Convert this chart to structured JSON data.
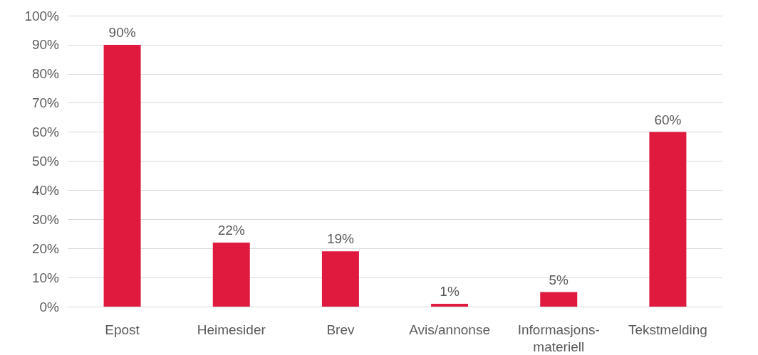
{
  "chart_data": {
    "type": "bar",
    "categories": [
      "Epost",
      "Heimesider",
      "Brev",
      "Avis/annonse",
      "Informasjons-\nmateriell",
      "Tekstmelding"
    ],
    "values": [
      90,
      22,
      19,
      1,
      5,
      60
    ],
    "value_labels": [
      "90%",
      "22%",
      "19%",
      "1%",
      "5%",
      "60%"
    ],
    "color": "#e0193f",
    "ylim": [
      0,
      100
    ],
    "yticks": [
      {
        "value": 0,
        "label": "0%"
      },
      {
        "value": 10,
        "label": "10%"
      },
      {
        "value": 20,
        "label": "20%"
      },
      {
        "value": 30,
        "label": "30%"
      },
      {
        "value": 40,
        "label": "40%"
      },
      {
        "value": 50,
        "label": "50%"
      },
      {
        "value": 60,
        "label": "60%"
      },
      {
        "value": 70,
        "label": "70%"
      },
      {
        "value": 80,
        "label": "80%"
      },
      {
        "value": 90,
        "label": "90%"
      },
      {
        "value": 100,
        "label": "100%"
      }
    ],
    "grid": "y"
  }
}
